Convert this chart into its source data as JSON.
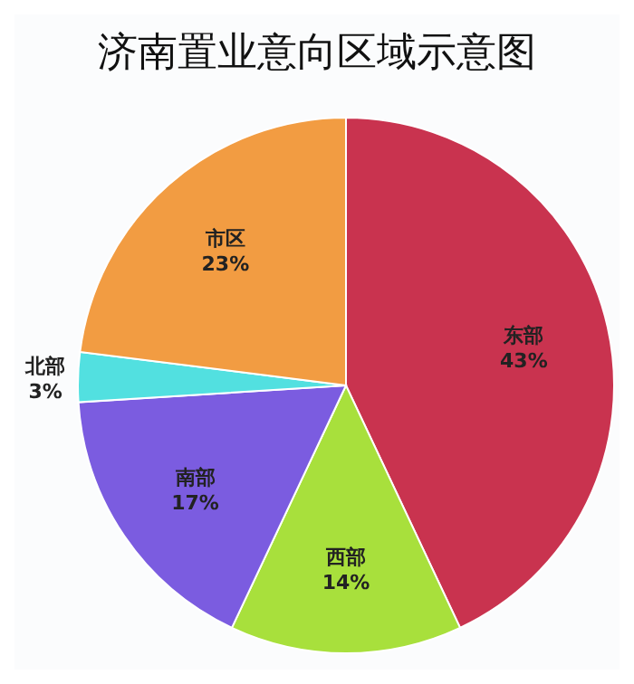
{
  "chart_data": {
    "type": "pie",
    "title": "济南置业意向区域示意图",
    "categories": [
      "东部",
      "西部",
      "南部",
      "北部",
      "市区"
    ],
    "values": [
      43,
      14,
      17,
      3,
      23
    ],
    "value_labels": [
      "43%",
      "14%",
      "17%",
      "3%",
      "23%"
    ],
    "colors": [
      "#c9334f",
      "#a8e03c",
      "#7b5ce0",
      "#52e0e0",
      "#f29c42"
    ]
  }
}
